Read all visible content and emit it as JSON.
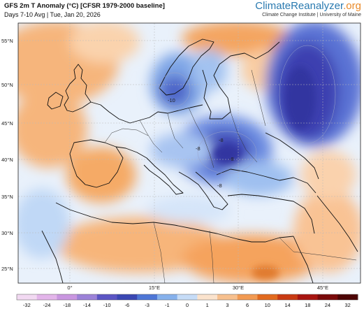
{
  "header": {
    "title": "GFS 2m T Anomaly (°C) [CFSR 1979-2000 baseline]",
    "subtitle": "Days 7-10 Avg | Tue, Jan 20, 2026"
  },
  "brand": {
    "name_main": "ClimateReanalyzer",
    "name_suffix": ".org",
    "institution": "Climate Change Institute | University of Maine"
  },
  "map": {
    "lat_labels": [
      "55°N",
      "50°N",
      "45°N",
      "40°N",
      "35°N",
      "30°N",
      "25°N"
    ],
    "lon_labels": [
      "0°",
      "15°E",
      "30°E",
      "45°E"
    ],
    "contour_labels": [
      "-8",
      "-8",
      "-8",
      "-8",
      "-10"
    ]
  },
  "colorbar": {
    "ticks": [
      "-32",
      "-24",
      "-18",
      "-14",
      "-10",
      "-6",
      "-3",
      "-1",
      "0",
      "1",
      "3",
      "6",
      "10",
      "14",
      "18",
      "24",
      "32"
    ],
    "colors": [
      "#f2d9f2",
      "#e3b5ea",
      "#c996e0",
      "#9c82d8",
      "#5b55c4",
      "#3a47b3",
      "#4e76d6",
      "#86b1ec",
      "#c6dcf7",
      "#fbe3cd",
      "#f7c08e",
      "#f29a52",
      "#e26a1e",
      "#c93a12",
      "#a81510",
      "#7a0a0a",
      "#4d0505"
    ]
  }
}
